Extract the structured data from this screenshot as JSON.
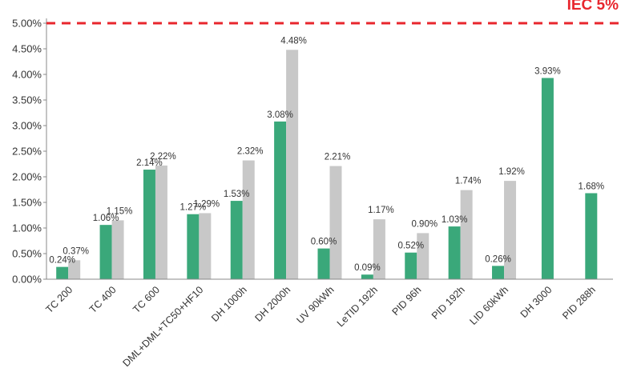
{
  "chart_data": {
    "type": "bar",
    "categories": [
      "TC 200",
      "TC 400",
      "TC 600",
      "DML+DML+TC50+HF10",
      "DH 1000h",
      "DH 2000h",
      "UV 90kWh",
      "LeTID 192h",
      "PID 96h",
      "PID 192h",
      "LID 60kWh",
      "DH 3000",
      "PID 288h"
    ],
    "series": [
      {
        "values": [
          0.24,
          1.06,
          2.14,
          1.27,
          1.53,
          3.08,
          0.6,
          0.09,
          0.52,
          1.03,
          0.26,
          3.93,
          1.68
        ],
        "labels": [
          "0.24%",
          "1.06%",
          "2.14%",
          "1.27%",
          "1.53%",
          "3.08%",
          "0.60%",
          "0.09%",
          "0.52%",
          "1.03%",
          "0.26%",
          "3.93%",
          "1.68%"
        ]
      },
      {
        "values": [
          0.37,
          1.15,
          2.22,
          1.29,
          2.32,
          4.48,
          2.21,
          1.17,
          0.9,
          1.74,
          1.92,
          null,
          null
        ],
        "labels": [
          "0.37%",
          "1.15%",
          "2.22%",
          "1.29%",
          "2.32%",
          "4.48%",
          "2.21%",
          "1.17%",
          "0.90%",
          "1.74%",
          "1.92%",
          null,
          null
        ]
      }
    ],
    "ylim": [
      0,
      5
    ],
    "yticks": [
      0,
      0.5,
      1.0,
      1.5,
      2.0,
      2.5,
      3.0,
      3.5,
      4.0,
      4.5,
      5.0
    ],
    "ytick_labels": [
      "0.00%",
      "0.50%",
      "1.00%",
      "1.50%",
      "2.00%",
      "2.50%",
      "3.00%",
      "3.50%",
      "4.00%",
      "4.50%",
      "5.00%"
    ],
    "reference_line": {
      "value": 5.0,
      "label": "IEC 5%"
    },
    "colors": {
      "series_1": "#3aa87a",
      "series_2": "#c8c8c8",
      "reference": "#e8262d",
      "axis": "#888888"
    },
    "grid": false
  }
}
